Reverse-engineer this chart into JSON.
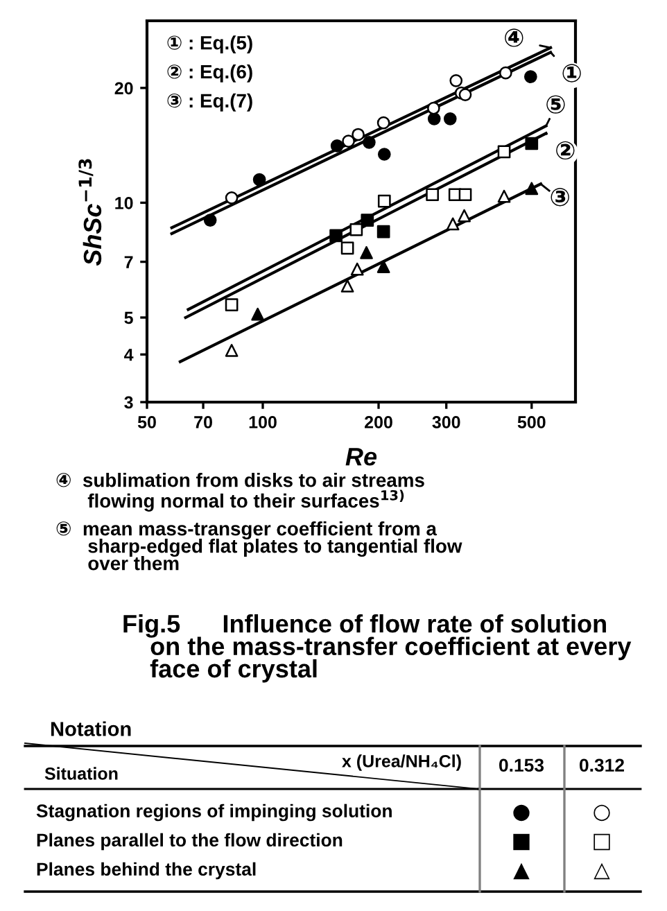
{
  "chart_data": [
    {
      "type": "scatter",
      "xlabel": "Re",
      "ylabel": "ShSc$^{−1/3}$",
      "log": "xy",
      "grid": false,
      "legend": "right",
      "xlim": [
        50,
        650
      ],
      "ylim": [
        3,
        30
      ],
      "xticks": [
        50,
        70,
        100,
        200,
        300,
        500
      ],
      "yticks": [
        3,
        4,
        5,
        7,
        10,
        20
      ],
      "annotations": [
        "① : Eq.(5)",
        "② : Eq.(6)",
        "③ : Eq.(7)",
        "④  sublimation from disks to air streams\n      flowing normal to their surfaces$^{13)}$",
        "⑤  mean mass-transger coefficient from a\n      sharp-edged flat plates to tangential flow\n      over them",
        "Fig.5      Influence of flow rate of solution\n    on the mass-transfer coefficient at every\n    face of crystal"
      ],
      "series": [
        {
          "type": "line",
          "name": "④",
          "color": "#000000",
          "x": [
            58,
            560
          ],
          "values": [
            8.6,
            25.5
          ]
        },
        {
          "type": "line",
          "name": "①",
          "color": "#000000",
          "x": [
            58,
            560
          ],
          "values": [
            8.3,
            24.8
          ]
        },
        {
          "type": "line",
          "name": "⑤",
          "color": "#000000",
          "x": [
            64,
            545
          ],
          "values": [
            5.25,
            15.9
          ]
        },
        {
          "type": "line",
          "name": "②",
          "color": "#000000",
          "x": [
            63,
            545
          ],
          "values": [
            5.0,
            15.2
          ]
        },
        {
          "type": "line",
          "name": "③",
          "color": "#000000",
          "x": [
            61,
            528
          ],
          "values": [
            3.83,
            11.2
          ]
        },
        {
          "type": "scatter",
          "marker": "circle",
          "color": "#000000",
          "x": [
            73,
            98,
            156,
            189,
            207,
            279,
            307,
            497
          ],
          "values": [
            9.0,
            11.5,
            14.1,
            14.4,
            13.4,
            16.6,
            16.6,
            21.4
          ]
        },
        {
          "type": "scatter",
          "marker": "circle",
          "color": "#ffffff",
          "x": [
            83,
            167,
            177,
            206,
            278,
            318,
            328,
            336,
            428
          ],
          "values": [
            10.3,
            14.5,
            15.1,
            16.2,
            17.7,
            20.9,
            19.4,
            19.2,
            21.9
          ]
        },
        {
          "type": "scatter",
          "marker": "square",
          "color": "#000000",
          "x": [
            155,
            187,
            206,
            500
          ],
          "values": [
            8.2,
            9.0,
            8.4,
            14.3
          ]
        },
        {
          "type": "scatter",
          "marker": "square",
          "color": "#ffffff",
          "x": [
            83,
            166,
            175,
            207,
            276,
            316,
            336,
            424
          ],
          "values": [
            5.4,
            7.6,
            8.5,
            10.1,
            10.5,
            10.5,
            10.5,
            13.6
          ]
        },
        {
          "type": "scatter",
          "marker": "triangle",
          "color": "#000000",
          "x": [
            97,
            186,
            206,
            500
          ],
          "values": [
            5.1,
            7.4,
            6.8,
            10.9
          ]
        },
        {
          "type": "scatter",
          "marker": "triangle",
          "color": "#ffffff",
          "x": [
            83,
            166,
            176,
            312,
            334,
            424
          ],
          "values": [
            4.1,
            6.05,
            6.7,
            8.8,
            9.25,
            10.4
          ]
        }
      ]
    },
    {
      "type": "other",
      "title": "Notation",
      "xlabel": "x (Urea/NH₄Cl)",
      "ylabel": "Situation",
      "categories": [
        "0.153",
        "0.312"
      ],
      "y_categories": [
        "Stagnation regions of impinging solution",
        "Planes parallel to the flow direction",
        "Planes behind the crystal"
      ],
      "cell_labels": [
        [
          "●",
          "○"
        ],
        [
          "■",
          "□"
        ],
        [
          "▲",
          "△"
        ]
      ]
    }
  ]
}
